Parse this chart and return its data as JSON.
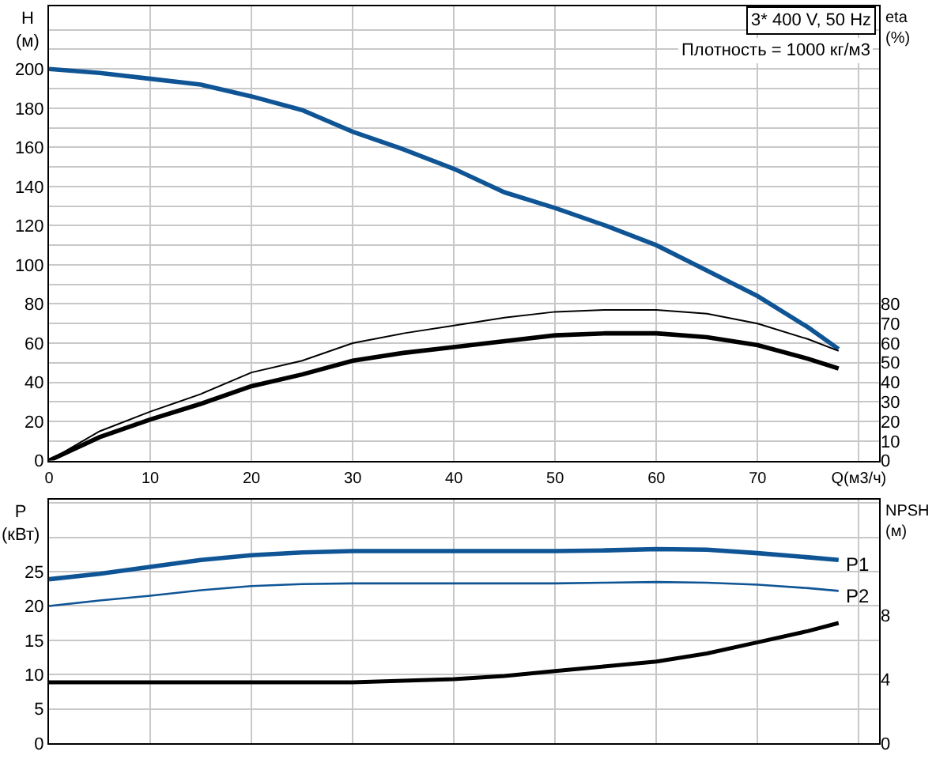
{
  "chart_data": [
    {
      "type": "line",
      "ylabel": "H\n(м)",
      "y2label": "eta\n(%)",
      "annotations": [
        "3* 400 V, 50 Hz",
        "Плотность = 1000 кг/м3"
      ],
      "x": [
        0,
        5,
        10,
        15,
        20,
        25,
        30,
        35,
        40,
        45,
        50,
        55,
        60,
        65,
        70,
        75,
        78
      ],
      "series": [
        {
          "color": "#0f5595",
          "values": [
            200,
            198,
            195,
            192,
            186,
            179,
            168,
            159,
            149,
            137,
            129,
            120,
            110,
            97,
            84,
            68,
            57
          ]
        },
        {
          "color": "#000000",
          "axis": "y2",
          "values": [
            0,
            15,
            25,
            34,
            45,
            51,
            60,
            65,
            69,
            73,
            76,
            77,
            77,
            75,
            70,
            62,
            56
          ]
        },
        {
          "color": "#000000",
          "axis": "y2",
          "values": [
            0,
            12,
            21,
            29,
            38,
            44,
            51,
            55,
            58,
            61,
            64,
            65,
            65,
            63,
            59,
            52,
            47
          ]
        }
      ],
      "xlim": [
        0,
        82
      ],
      "xticks": [
        0,
        10,
        20,
        30,
        40,
        50,
        60,
        70,
        {
          "value": 80,
          "label": "Q(м3/ч)"
        }
      ],
      "ylim": [
        0,
        232
      ],
      "yticks": [
        0,
        {
          "value": 10,
          "label": null
        },
        20,
        {
          "value": 30,
          "label": null
        },
        40,
        {
          "value": 50,
          "label": null
        },
        60,
        {
          "value": 70,
          "label": null
        },
        80,
        {
          "value": 90,
          "label": null
        },
        100,
        {
          "value": 110,
          "label": null
        },
        120,
        {
          "value": 130,
          "label": null
        },
        140,
        {
          "value": 150,
          "label": null
        },
        160,
        {
          "value": 170,
          "label": null
        },
        180,
        {
          "value": 190,
          "label": null
        },
        200,
        {
          "value": 210,
          "label": null
        },
        {
          "value": 220,
          "label": null
        }
      ],
      "y2lim": [
        0,
        232
      ],
      "y2ticks": [
        0,
        10,
        20,
        30,
        40,
        50,
        60,
        70,
        80
      ],
      "grid": true
    },
    {
      "type": "line",
      "ylabel": "P\n(кВт)",
      "y2label": "NPSH\n(м)",
      "x": [
        0,
        5,
        10,
        15,
        20,
        25,
        30,
        35,
        40,
        45,
        50,
        55,
        60,
        65,
        70,
        75,
        78
      ],
      "series": [
        {
          "name": "P1",
          "color": "#0f5595",
          "values": [
            23.9,
            24.7,
            25.7,
            26.7,
            27.4,
            27.8,
            28,
            28,
            28,
            28,
            28,
            28.1,
            28.3,
            28.2,
            27.7,
            27.1,
            26.7
          ]
        },
        {
          "name": "P2",
          "color": "#0f5595",
          "values": [
            20,
            20.8,
            21.5,
            22.3,
            22.9,
            23.2,
            23.3,
            23.3,
            23.3,
            23.3,
            23.3,
            23.4,
            23.5,
            23.4,
            23.1,
            22.6,
            22.2
          ]
        },
        {
          "color": "#000000",
          "axis": "y2",
          "values": [
            3.8,
            3.8,
            3.8,
            3.8,
            3.8,
            3.8,
            3.8,
            3.9,
            4.0,
            4.2,
            4.5,
            4.8,
            5.1,
            5.6,
            6.3,
            7.0,
            7.5
          ]
        }
      ],
      "xlim": [
        0,
        82
      ],
      "xticks": [
        0,
        10,
        20,
        30,
        40,
        50,
        60,
        70,
        80
      ],
      "ylim": [
        0,
        35.5
      ],
      "yticks": [
        0,
        5,
        10,
        15,
        20,
        25,
        {
          "value": 30,
          "label": null
        },
        {
          "value": 35,
          "label": null
        }
      ],
      "y2lim": [
        0,
        15.2
      ],
      "y2ticks": [
        0,
        4,
        8
      ],
      "tick_labels": "y",
      "grid": true
    }
  ]
}
